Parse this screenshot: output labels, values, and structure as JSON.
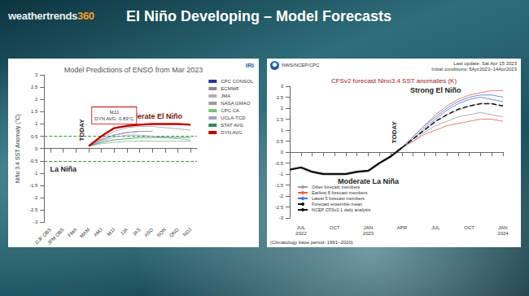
{
  "header": {
    "logo": "weathertrends360",
    "title": "El Niño Developing – Model Forecasts"
  },
  "chart_data": [
    {
      "type": "line",
      "title": "Model Predictions of ENSO from Mar 2023",
      "source": "IRI",
      "ylabel": "Niño 3.4 SST Anomaly (°C)",
      "categories": [
        "DJF OBS",
        "JFM OBS",
        "FMA",
        "MAM",
        "AMJ",
        "MJJ",
        "JJA",
        "JAS",
        "ASO",
        "SON",
        "OND",
        "NDJ"
      ],
      "series": [
        {
          "name": "CPC CONSOL",
          "color": "#1f3a93",
          "line_style": "solid",
          "values": [
            null,
            null,
            null,
            0.1,
            0.35,
            0.55,
            0.65,
            0.7,
            0.7,
            null,
            null,
            null
          ]
        },
        {
          "name": "ECMWF",
          "color": "#8a8a8a",
          "line_style": "solid",
          "values": [
            null,
            null,
            null,
            0.1,
            0.5,
            0.85,
            0.95,
            1.0,
            null,
            null,
            null,
            null
          ]
        },
        {
          "name": "JMA",
          "color": "#b0b0b0",
          "line_style": "solid",
          "values": [
            null,
            null,
            null,
            0.1,
            0.35,
            0.55,
            0.65,
            0.7,
            0.7,
            null,
            null,
            null
          ]
        },
        {
          "name": "NASA GMAO",
          "color": "#9c9c9c",
          "line_style": "solid",
          "values": [
            null,
            null,
            null,
            0.1,
            0.4,
            0.7,
            0.85,
            0.9,
            0.9,
            0.85,
            0.8,
            0.75
          ]
        },
        {
          "name": "CPC CA",
          "color": "#7fbf7f",
          "line_style": "solid",
          "values": [
            null,
            null,
            null,
            0.1,
            0.2,
            0.25,
            0.3,
            0.3,
            0.3,
            0.3,
            0.3,
            0.3
          ]
        },
        {
          "name": "UCLA-TCD",
          "color": "#a0a0c8",
          "line_style": "solid",
          "values": [
            null,
            null,
            null,
            0.1,
            0.3,
            0.45,
            0.55,
            0.55,
            0.5,
            0.45,
            0.4,
            0.35
          ]
        },
        {
          "name": "STAT AVG",
          "color": "#2e8b57",
          "line_style": "solid",
          "values": [
            null,
            null,
            null,
            0.1,
            0.25,
            0.35,
            0.4,
            0.45,
            0.45,
            0.45,
            0.45,
            0.45
          ]
        },
        {
          "name": "DYN AVG",
          "color": "#c00000",
          "line_style": "bold",
          "values": [
            null,
            null,
            null,
            0.1,
            0.5,
            0.83,
            0.92,
            0.97,
            1.0,
            1.0,
            1.0,
            0.97
          ]
        }
      ],
      "ylim": [
        -3,
        3
      ],
      "yticks": [
        -3,
        -2.5,
        -2,
        -1.5,
        -1,
        -0.5,
        0,
        0.5,
        1,
        1.5,
        2,
        2.5,
        3
      ],
      "grid": false,
      "legend": "right",
      "reference_lines": [
        0.5,
        -0.5
      ],
      "annotations": [
        {
          "text": "Moderate El Niño",
          "x": "ASO",
          "y": 1.3,
          "color": "#7a1010"
        },
        {
          "text": "La Niña",
          "x": "JFM OBS",
          "y": -0.85,
          "color": "#222222"
        },
        {
          "text": "TODAY",
          "x": "MAM",
          "y": 0.75,
          "color": "#222222",
          "orientation": "vertical"
        }
      ],
      "callout": {
        "title": "MJJ",
        "text": "DYN AVG: 0.83°C",
        "x": "MJJ",
        "y": 1.35
      }
    },
    {
      "type": "line",
      "title": "CFSv2 forecast Nino3.4 SST anomalies (K)",
      "source": "NWS/NCEP/CPC",
      "updated": "Last update: Sat Apr 15 2023",
      "conditions": "Initial conditions: 5Apr2023–14Apr2023",
      "footnote": "(Climatology base period: 1991–2020)",
      "categories": [
        null,
        "JUL\n2022",
        null,
        null,
        "OCT",
        null,
        null,
        "JAN\n2023",
        null,
        null,
        "APR",
        null,
        null,
        "JUL",
        null,
        null,
        "OCT",
        null,
        null,
        "JAN\n2024"
      ],
      "series": [
        {
          "name": "Other forecast members",
          "color": "#9a9a9a",
          "line_style": "solid",
          "values": [
            null,
            null,
            null,
            null,
            null,
            null,
            null,
            null,
            null,
            null,
            0.2,
            0.6,
            1.0,
            1.4,
            1.7,
            1.9,
            2.1,
            2.2,
            2.2,
            2.1
          ]
        },
        {
          "name": "Other forecast members",
          "color": "#9a9a9a",
          "line_style": "solid",
          "values": [
            null,
            null,
            null,
            null,
            null,
            null,
            null,
            null,
            null,
            null,
            0.2,
            0.5,
            0.9,
            1.2,
            1.4,
            1.6,
            1.7,
            1.8,
            1.7,
            1.6
          ]
        },
        {
          "name": "Earliest 8 forecast members",
          "color": "#e8604c",
          "line_style": "solid",
          "values": [
            null,
            null,
            null,
            null,
            null,
            null,
            null,
            null,
            null,
            null,
            0.2,
            0.5,
            0.8,
            1.0,
            1.2,
            1.3,
            1.4,
            1.5,
            1.5,
            1.4
          ]
        },
        {
          "name": "Earliest 8 forecast members",
          "color": "#e8604c",
          "line_style": "solid",
          "values": [
            null,
            null,
            null,
            null,
            null,
            null,
            null,
            null,
            null,
            null,
            0.2,
            0.7,
            1.2,
            1.7,
            2.1,
            2.4,
            2.6,
            2.7,
            2.8,
            2.8
          ]
        },
        {
          "name": "Latest 5 forecast members",
          "color": "#4a6fd8",
          "line_style": "solid",
          "values": [
            null,
            null,
            null,
            null,
            null,
            null,
            null,
            null,
            null,
            null,
            0.2,
            0.7,
            1.2,
            1.6,
            2.0,
            2.3,
            2.5,
            2.6,
            2.6,
            2.5
          ]
        },
        {
          "name": "Latest 5 forecast members",
          "color": "#4a6fd8",
          "line_style": "solid",
          "values": [
            null,
            null,
            null,
            null,
            null,
            null,
            null,
            null,
            null,
            null,
            0.2,
            0.6,
            1.1,
            1.5,
            1.9,
            2.2,
            2.4,
            2.5,
            2.4,
            2.3
          ]
        },
        {
          "name": "Forecast ensemble mean",
          "color": "#111111",
          "line_style": "dashed",
          "values": [
            null,
            null,
            null,
            null,
            null,
            null,
            null,
            null,
            null,
            null,
            0.2,
            0.6,
            1.0,
            1.4,
            1.7,
            1.95,
            2.1,
            2.2,
            2.2,
            2.1
          ]
        },
        {
          "name": "NCEP CFSv2.1 daily analysis",
          "color": "#111111",
          "line_style": "bold",
          "values": [
            -0.8,
            -0.7,
            -0.9,
            -1.0,
            -1.0,
            -1.0,
            -0.9,
            -0.85,
            -0.5,
            -0.2,
            0.2,
            null,
            null,
            null,
            null,
            null,
            null,
            null,
            null,
            null
          ]
        }
      ],
      "ylim": [
        -3,
        3
      ],
      "yticks": [
        -3,
        -2.5,
        -2,
        -1.5,
        -1,
        -0.5,
        0,
        0.5,
        1,
        1.5,
        2,
        2.5,
        3
      ],
      "grid": false,
      "legend": "lower left",
      "annotations": [
        {
          "text": "Strong El Niño",
          "x": "JUL",
          "y": 2.8,
          "color": "#222222"
        },
        {
          "text": "Moderate La Niña",
          "x": "JAN\n2023",
          "y": -1.35,
          "color": "#222222"
        },
        {
          "text": "TODAY",
          "x": "APR",
          "y": 0.9,
          "color": "#222222",
          "orientation": "vertical"
        }
      ]
    }
  ]
}
